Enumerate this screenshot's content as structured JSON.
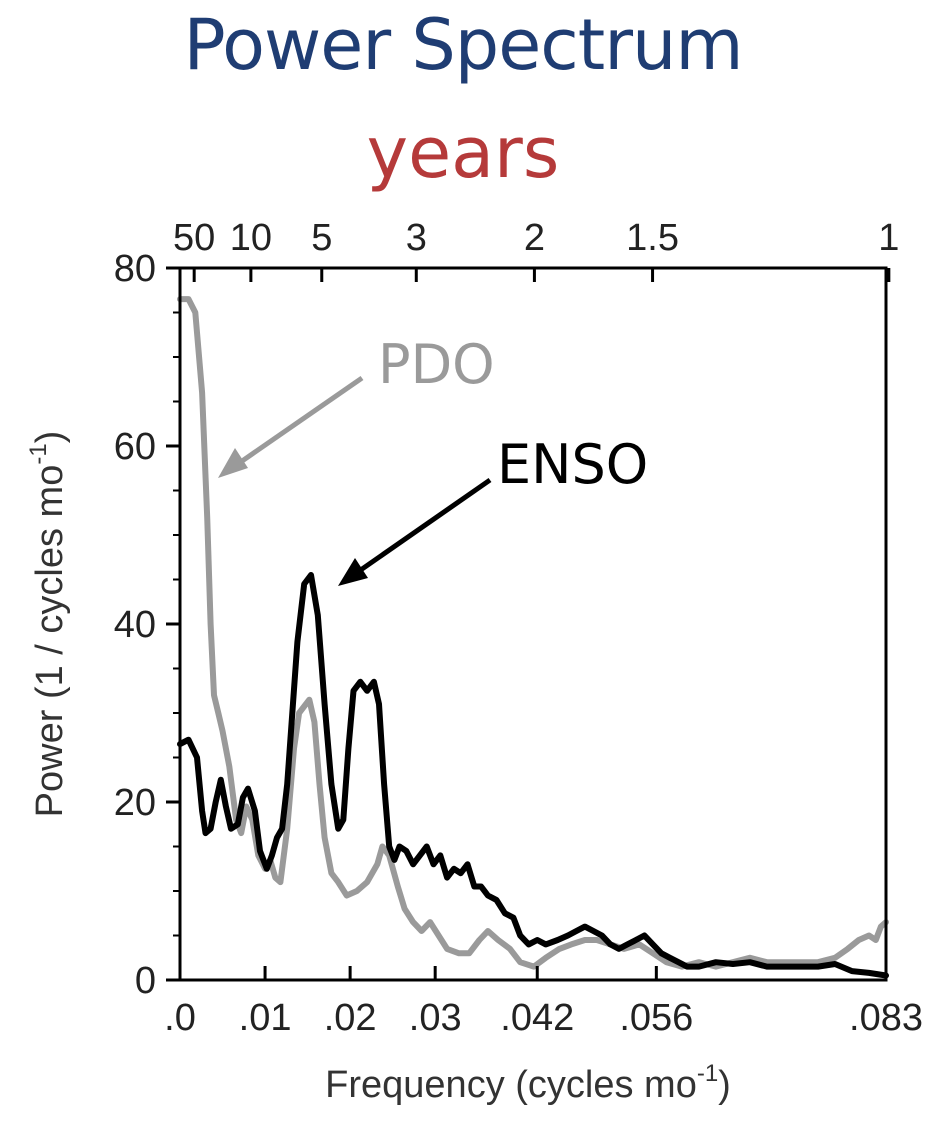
{
  "colors": {
    "title": "#1f3d73",
    "subtitle": "#b53a3a",
    "enso": "#000000",
    "pdo": "#9a9a9a"
  },
  "chart_data": {
    "type": "line",
    "title": "Power Spectrum",
    "subtitle": "years",
    "xlabel": "Frequency (cycles mo",
    "xlabel_sup": "-1",
    "xlabel_close": ")",
    "ylabel": "Power (1 / cycles mo",
    "ylabel_sup": "-1",
    "ylabel_close": ")",
    "xlim": [
      0,
      0.083
    ],
    "ylim": [
      0,
      80
    ],
    "yticks": [
      0,
      20,
      40,
      60,
      80
    ],
    "xticks": [
      {
        "value": 0,
        "label": ".0"
      },
      {
        "value": 0.01,
        "label": ".01"
      },
      {
        "value": 0.02,
        "label": ".02"
      },
      {
        "value": 0.03,
        "label": ".03"
      },
      {
        "value": 0.042,
        "label": ".042"
      },
      {
        "value": 0.056,
        "label": ".056"
      },
      {
        "value": 0.083,
        "label": ".083"
      }
    ],
    "top_axis_label": "years",
    "top_ticks": [
      {
        "years": 50,
        "label": "50"
      },
      {
        "years": 10,
        "label": "10"
      },
      {
        "years": 5,
        "label": "5"
      },
      {
        "years": 3,
        "label": "3"
      },
      {
        "years": 2,
        "label": "2"
      },
      {
        "years": 1.5,
        "label": "1.5"
      },
      {
        "years": 1,
        "label": "1"
      }
    ],
    "grid": false,
    "series": [
      {
        "name": "PDO",
        "color": "#9a9a9a",
        "points": [
          [
            0.0,
            76.5
          ],
          [
            0.001,
            76.5
          ],
          [
            0.0018,
            75.0
          ],
          [
            0.0026,
            66.0
          ],
          [
            0.0032,
            52.0
          ],
          [
            0.0036,
            40.0
          ],
          [
            0.004,
            32.0
          ],
          [
            0.0045,
            30.0
          ],
          [
            0.005,
            28.0
          ],
          [
            0.0058,
            24.0
          ],
          [
            0.0066,
            18.0
          ],
          [
            0.0072,
            16.5
          ],
          [
            0.0078,
            19.5
          ],
          [
            0.0085,
            18.0
          ],
          [
            0.0092,
            14.0
          ],
          [
            0.01,
            12.5
          ],
          [
            0.0106,
            13.5
          ],
          [
            0.0112,
            11.5
          ],
          [
            0.0118,
            11.0
          ],
          [
            0.0126,
            17.0
          ],
          [
            0.0134,
            26.0
          ],
          [
            0.014,
            30.0
          ],
          [
            0.0152,
            31.5
          ],
          [
            0.0158,
            29.0
          ],
          [
            0.0164,
            22.0
          ],
          [
            0.017,
            16.0
          ],
          [
            0.0178,
            12.0
          ],
          [
            0.0186,
            11.0
          ],
          [
            0.0196,
            9.5
          ],
          [
            0.0208,
            10.0
          ],
          [
            0.022,
            11.0
          ],
          [
            0.0232,
            13.0
          ],
          [
            0.0238,
            15.0
          ],
          [
            0.0246,
            14.0
          ],
          [
            0.0256,
            10.5
          ],
          [
            0.0264,
            8.0
          ],
          [
            0.0274,
            6.5
          ],
          [
            0.0284,
            5.5
          ],
          [
            0.0294,
            6.5
          ],
          [
            0.0304,
            5.0
          ],
          [
            0.0314,
            3.5
          ],
          [
            0.0328,
            3.0
          ],
          [
            0.034,
            3.0
          ],
          [
            0.0352,
            4.5
          ],
          [
            0.0362,
            5.5
          ],
          [
            0.0374,
            4.5
          ],
          [
            0.0388,
            3.5
          ],
          [
            0.04,
            2.0
          ],
          [
            0.0416,
            1.5
          ],
          [
            0.043,
            2.5
          ],
          [
            0.0446,
            3.5
          ],
          [
            0.046,
            4.0
          ],
          [
            0.0476,
            4.5
          ],
          [
            0.049,
            4.5
          ],
          [
            0.0506,
            4.0
          ],
          [
            0.0522,
            3.5
          ],
          [
            0.054,
            4.0
          ],
          [
            0.0556,
            3.0
          ],
          [
            0.0572,
            2.0
          ],
          [
            0.059,
            1.5
          ],
          [
            0.061,
            2.0
          ],
          [
            0.063,
            1.5
          ],
          [
            0.065,
            2.0
          ],
          [
            0.067,
            2.5
          ],
          [
            0.069,
            2.0
          ],
          [
            0.071,
            2.0
          ],
          [
            0.073,
            2.0
          ],
          [
            0.075,
            2.0
          ],
          [
            0.077,
            2.5
          ],
          [
            0.0785,
            3.5
          ],
          [
            0.0798,
            4.5
          ],
          [
            0.081,
            5.0
          ],
          [
            0.0818,
            4.5
          ],
          [
            0.0824,
            6.0
          ],
          [
            0.083,
            6.5
          ]
        ]
      },
      {
        "name": "ENSO",
        "color": "#000000",
        "points": [
          [
            0.0,
            26.5
          ],
          [
            0.001,
            27.0
          ],
          [
            0.002,
            25.0
          ],
          [
            0.0026,
            19.0
          ],
          [
            0.003,
            16.5
          ],
          [
            0.0036,
            17.0
          ],
          [
            0.0042,
            20.0
          ],
          [
            0.0048,
            22.5
          ],
          [
            0.0054,
            19.5
          ],
          [
            0.006,
            17.0
          ],
          [
            0.0068,
            17.5
          ],
          [
            0.0074,
            20.5
          ],
          [
            0.008,
            21.5
          ],
          [
            0.0088,
            19.0
          ],
          [
            0.0094,
            14.5
          ],
          [
            0.0102,
            12.5
          ],
          [
            0.0108,
            14.0
          ],
          [
            0.0114,
            16.0
          ],
          [
            0.012,
            17.0
          ],
          [
            0.0126,
            22.0
          ],
          [
            0.0132,
            30.0
          ],
          [
            0.0138,
            38.0
          ],
          [
            0.0146,
            44.5
          ],
          [
            0.0154,
            45.5
          ],
          [
            0.0162,
            41.0
          ],
          [
            0.017,
            31.0
          ],
          [
            0.0178,
            22.0
          ],
          [
            0.0186,
            17.0
          ],
          [
            0.0192,
            18.0
          ],
          [
            0.0198,
            26.0
          ],
          [
            0.0204,
            32.5
          ],
          [
            0.0212,
            33.5
          ],
          [
            0.022,
            32.5
          ],
          [
            0.0228,
            33.5
          ],
          [
            0.0234,
            31.0
          ],
          [
            0.024,
            22.0
          ],
          [
            0.0246,
            15.0
          ],
          [
            0.0252,
            13.5
          ],
          [
            0.0258,
            15.0
          ],
          [
            0.0266,
            14.5
          ],
          [
            0.0274,
            13.0
          ],
          [
            0.0282,
            14.0
          ],
          [
            0.029,
            15.0
          ],
          [
            0.0298,
            13.0
          ],
          [
            0.0306,
            14.0
          ],
          [
            0.0314,
            11.5
          ],
          [
            0.0322,
            12.5
          ],
          [
            0.033,
            12.0
          ],
          [
            0.0338,
            13.0
          ],
          [
            0.0346,
            10.5
          ],
          [
            0.0354,
            10.5
          ],
          [
            0.0362,
            9.5
          ],
          [
            0.0372,
            9.0
          ],
          [
            0.0382,
            7.5
          ],
          [
            0.0392,
            7.0
          ],
          [
            0.04,
            5.0
          ],
          [
            0.041,
            4.0
          ],
          [
            0.042,
            4.5
          ],
          [
            0.043,
            4.0
          ],
          [
            0.0444,
            4.5
          ],
          [
            0.0456,
            5.0
          ],
          [
            0.0466,
            5.5
          ],
          [
            0.0476,
            6.0
          ],
          [
            0.0486,
            5.5
          ],
          [
            0.0496,
            5.0
          ],
          [
            0.0506,
            4.0
          ],
          [
            0.0516,
            3.5
          ],
          [
            0.0526,
            4.0
          ],
          [
            0.0536,
            4.5
          ],
          [
            0.0546,
            5.0
          ],
          [
            0.0556,
            4.0
          ],
          [
            0.0566,
            3.0
          ],
          [
            0.0576,
            2.5
          ],
          [
            0.0586,
            2.0
          ],
          [
            0.0596,
            1.5
          ],
          [
            0.061,
            1.5
          ],
          [
            0.063,
            2.0
          ],
          [
            0.065,
            1.8
          ],
          [
            0.067,
            2.0
          ],
          [
            0.069,
            1.5
          ],
          [
            0.071,
            1.5
          ],
          [
            0.073,
            1.5
          ],
          [
            0.075,
            1.5
          ],
          [
            0.077,
            1.8
          ],
          [
            0.079,
            1.0
          ],
          [
            0.081,
            0.8
          ],
          [
            0.083,
            0.5
          ]
        ]
      }
    ],
    "annotations": [
      {
        "text": "PDO",
        "target_series": "PDO"
      },
      {
        "text": "ENSO",
        "target_series": "ENSO"
      }
    ]
  }
}
